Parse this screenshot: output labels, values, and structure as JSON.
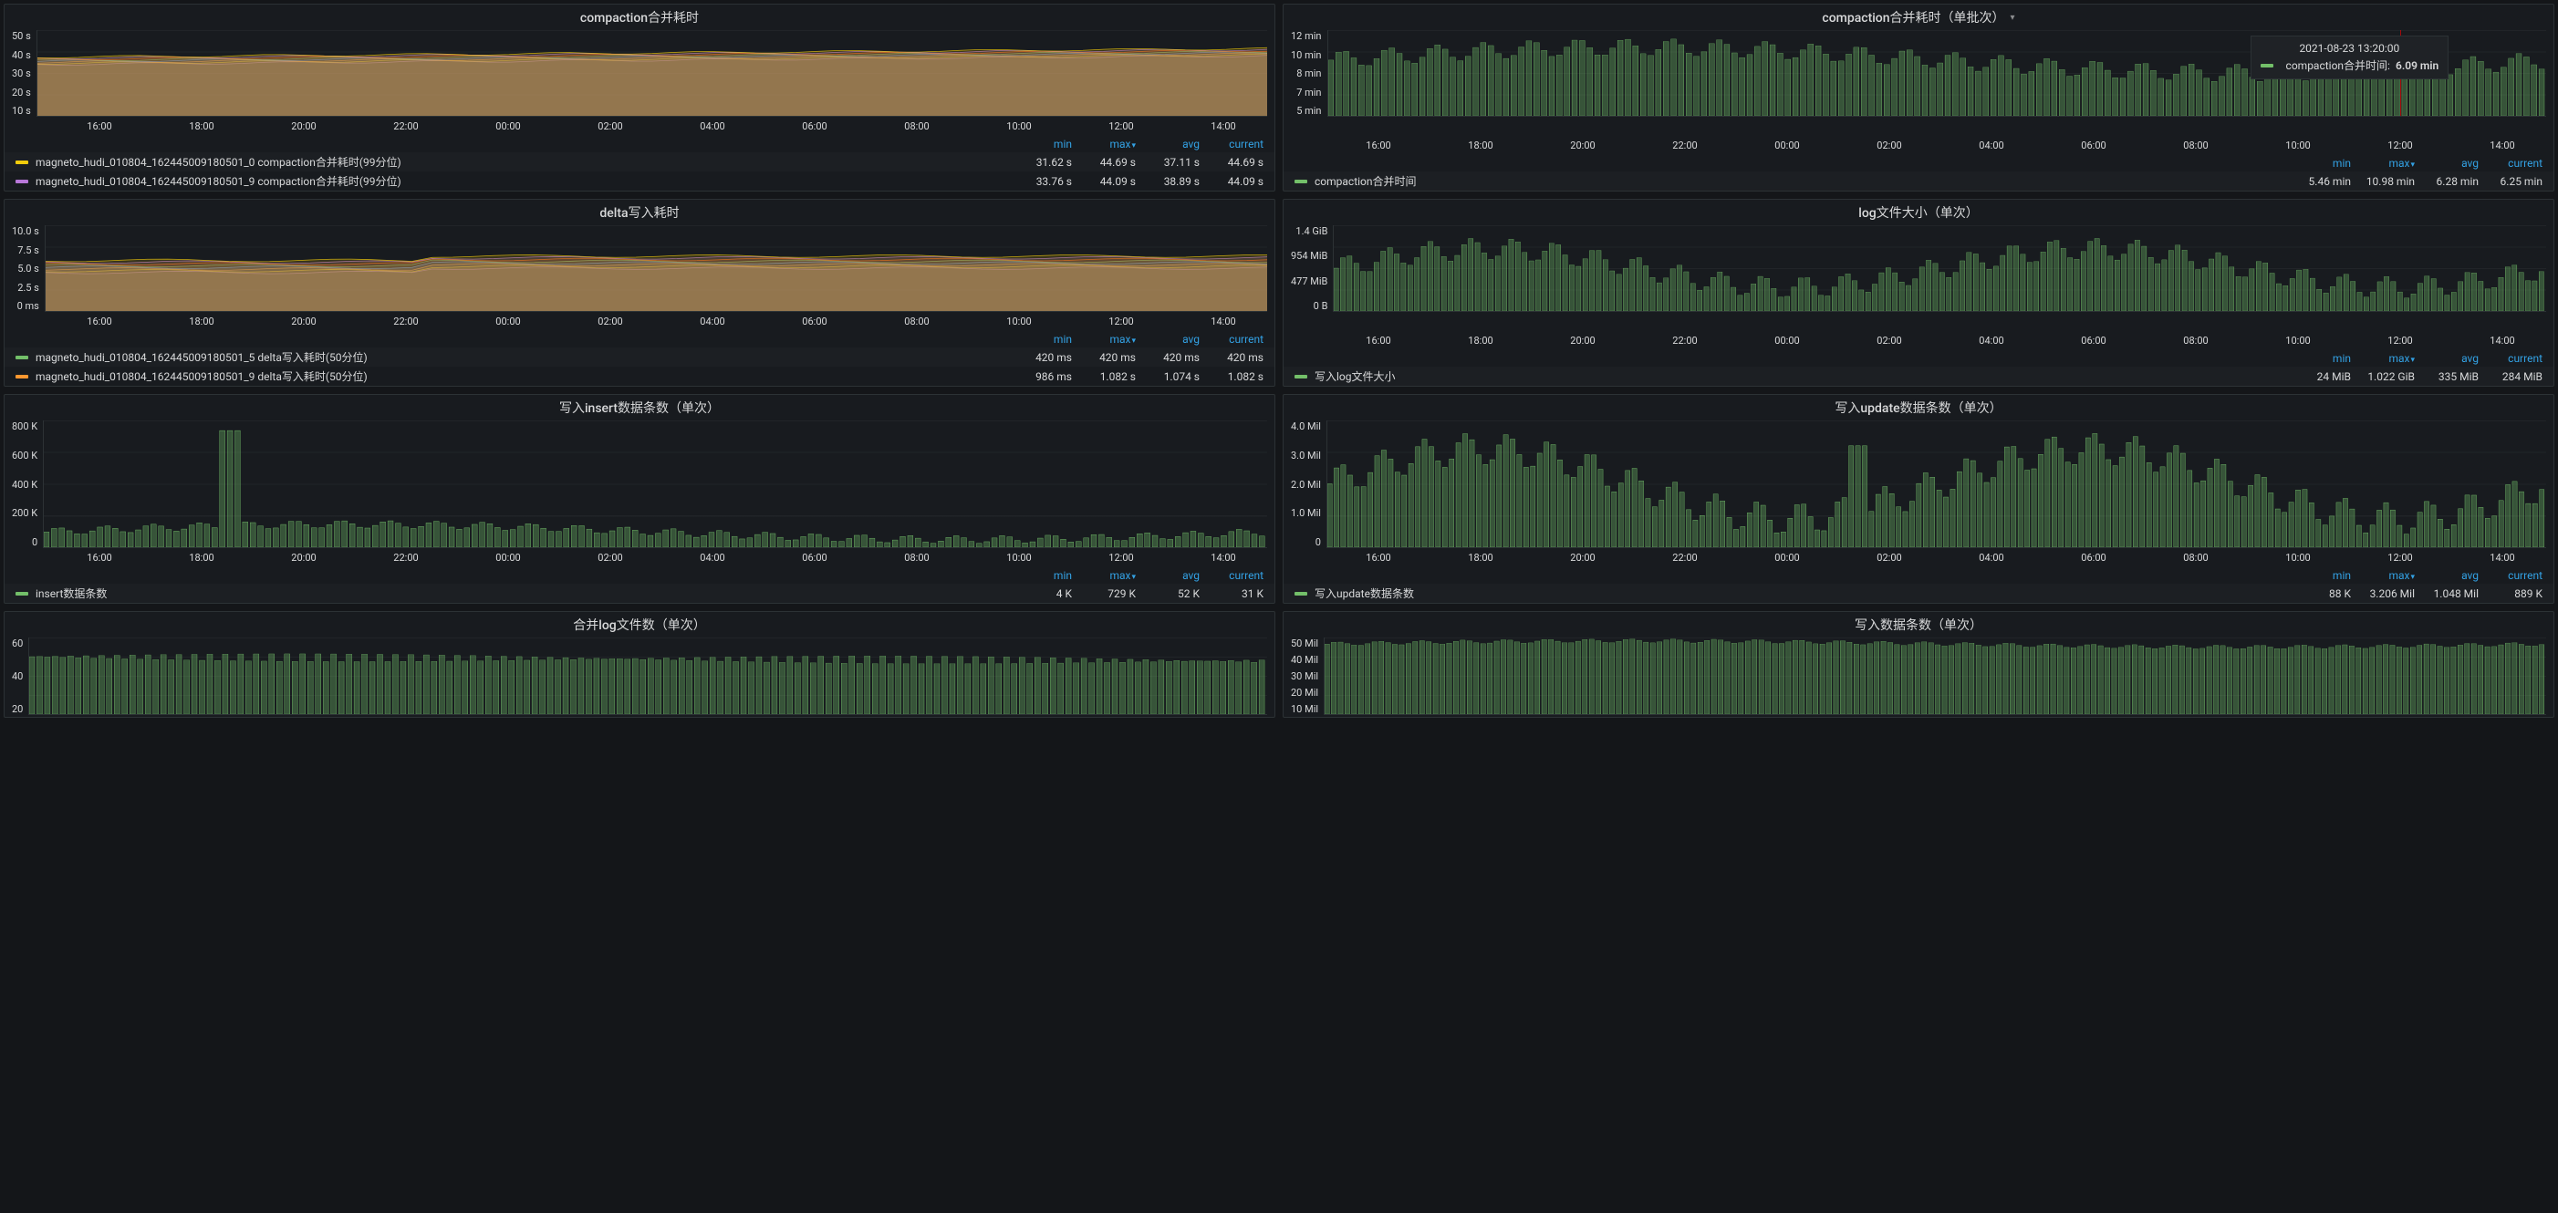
{
  "colors": {
    "bg": "#141619",
    "panel": "#181b1f",
    "grid": "#2c3235",
    "text": "#d8d9da",
    "link": "#33a2e5",
    "fillGreen": "#73bf69",
    "lineGreen": "#73bf69",
    "yellow": "#f2cc0c",
    "purple": "#b877d9",
    "orange": "#ff9830"
  },
  "xAxis": {
    "ticks": [
      "16:00",
      "18:00",
      "20:00",
      "22:00",
      "00:00",
      "02:00",
      "04:00",
      "06:00",
      "08:00",
      "10:00",
      "12:00",
      "14:00"
    ]
  },
  "panels": [
    {
      "id": "p1",
      "title": "compaction合并耗时",
      "type": "line-area-multi",
      "plotHeight": 95,
      "yTicks": [
        "50 s",
        "40 s",
        "30 s",
        "20 s",
        "10 s"
      ],
      "legendCols": [
        "min",
        "max",
        "avg",
        "current"
      ],
      "sortCol": "max",
      "series": [
        {
          "color": "#f2cc0c",
          "label": "magneto_hudi_010804_162445009180501_0 compaction合并耗时(99分位)",
          "min": "31.62 s",
          "max": "44.69 s",
          "avg": "37.11 s",
          "current": "44.69 s"
        },
        {
          "color": "#b877d9",
          "label": "magneto_hudi_010804_162445009180501_9 compaction合并耗时(99分位)",
          "min": "33.76 s",
          "max": "44.09 s",
          "avg": "38.89 s",
          "current": "44.09 s"
        }
      ]
    },
    {
      "id": "p2",
      "title": "compaction合并耗时（单批次）",
      "type": "bar-dense",
      "dropdown": true,
      "plotHeight": 95,
      "yTicks": [
        "12 min",
        "10 min",
        "8 min",
        "7 min",
        "5 min"
      ],
      "legendCols": [
        "min",
        "max",
        "avg",
        "current"
      ],
      "sortCol": "max",
      "tooltip": {
        "time": "2021-08-23 13:20:00",
        "swatch": "#73bf69",
        "label": "compaction合并时间:",
        "value": "6.09 min",
        "cursorX": 88
      },
      "series": [
        {
          "color": "#73bf69",
          "label": "compaction合并时间",
          "min": "5.46 min",
          "max": "10.98 min",
          "avg": "6.28 min",
          "current": "6.25 min"
        }
      ]
    },
    {
      "id": "p3",
      "title": "delta写入耗时",
      "type": "line-area-multi",
      "plotHeight": 95,
      "yTicks": [
        "10.0 s",
        "7.5 s",
        "5.0 s",
        "2.5 s",
        "0 ms"
      ],
      "legendCols": [
        "min",
        "max",
        "avg",
        "current"
      ],
      "sortCol": "max",
      "series": [
        {
          "color": "#73bf69",
          "label": "magneto_hudi_010804_162445009180501_5 delta写入耗时(50分位)",
          "min": "420 ms",
          "max": "420 ms",
          "avg": "420 ms",
          "current": "420 ms"
        },
        {
          "color": "#ff9830",
          "label": "magneto_hudi_010804_162445009180501_9 delta写入耗时(50分位)",
          "min": "986 ms",
          "max": "1.082 s",
          "avg": "1.074 s",
          "current": "1.082 s"
        }
      ]
    },
    {
      "id": "p4",
      "title": "log文件大小（单次）",
      "type": "bar-dense",
      "plotHeight": 95,
      "yTicks": [
        "1.4 GiB",
        "954 MiB",
        "477 MiB",
        "0 B"
      ],
      "legendCols": [
        "min",
        "max",
        "avg",
        "current"
      ],
      "sortCol": "max",
      "series": [
        {
          "color": "#73bf69",
          "label": "写入log文件大小",
          "min": "24 MiB",
          "max": "1.022 GiB",
          "avg": "335 MiB",
          "current": "284 MiB"
        }
      ],
      "barPattern": {
        "base": 0.15,
        "amp": 0.45,
        "wave": 2.0,
        "noise": 0.25,
        "count": 180
      }
    },
    {
      "id": "p5",
      "title": "写入insert数据条数（单次）",
      "type": "bar-dense",
      "plotHeight": 140,
      "yTicks": [
        "800 K",
        "600 K",
        "400 K",
        "200 K",
        "0"
      ],
      "legendCols": [
        "min",
        "max",
        "avg",
        "current"
      ],
      "sortCol": "max",
      "series": [
        {
          "color": "#73bf69",
          "label": "insert数据条数",
          "min": "4 K",
          "max": "729 K",
          "avg": "52 K",
          "current": "31 K"
        }
      ],
      "barPattern": {
        "base": 0.03,
        "amp": 0.12,
        "wave": 0.0,
        "noise": 0.06,
        "count": 160,
        "spikeIdx": 24,
        "spikeH": 0.92
      }
    },
    {
      "id": "p6",
      "title": "写入update数据条数（单次）",
      "type": "bar-dense",
      "plotHeight": 140,
      "yTicks": [
        "4.0 Mil",
        "3.0 Mil",
        "2.0 Mil",
        "1.0 Mil",
        "0"
      ],
      "legendCols": [
        "min",
        "max",
        "avg",
        "current"
      ],
      "sortCol": "max",
      "series": [
        {
          "color": "#73bf69",
          "label": "写入update数据条数",
          "min": "88 K",
          "max": "3.206 Mil",
          "avg": "1.048 Mil",
          "current": "889 K"
        }
      ],
      "barPattern": {
        "base": 0.1,
        "amp": 0.55,
        "wave": 2.0,
        "noise": 0.25,
        "count": 180,
        "spikeIdx": 78,
        "spikeH": 0.8
      }
    },
    {
      "id": "p7",
      "title": "合并log文件数（单次）",
      "type": "bar-dense",
      "partial": true,
      "plotHeight": 85,
      "yTicks": [
        "60",
        "40",
        "20"
      ],
      "barPattern": {
        "base": 0.55,
        "amp": 0.15,
        "wave": 0.5,
        "noise": 0.1,
        "count": 160,
        "decay": 0.4
      }
    },
    {
      "id": "p8",
      "title": "写入数据条数（单次）",
      "type": "bar-dense",
      "partial": true,
      "plotHeight": 85,
      "yTicks": [
        "50 Mil",
        "40 Mil",
        "30 Mil",
        "20 Mil",
        "10 Mil"
      ],
      "barPattern": {
        "base": 0.85,
        "amp": 0.08,
        "wave": 1.0,
        "noise": 0.05,
        "count": 180
      }
    }
  ]
}
